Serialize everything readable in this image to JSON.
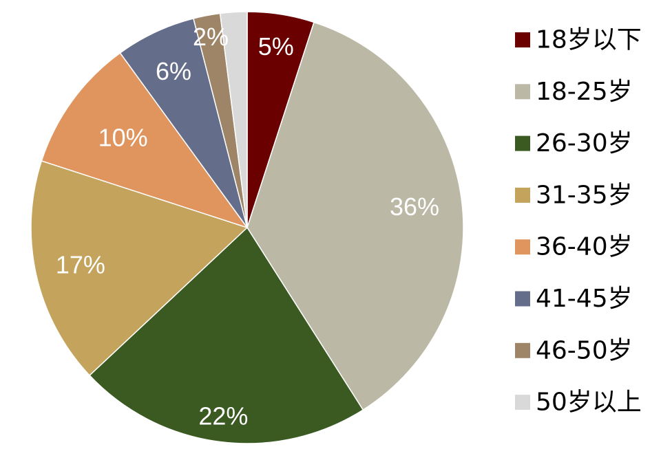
{
  "chart_data": {
    "type": "pie",
    "title": "",
    "legend_position": "right",
    "slices": [
      {
        "label": "18岁以下",
        "value": 5,
        "display": "5%",
        "color": "#6b0000"
      },
      {
        "label": "18-25岁",
        "value": 36,
        "display": "36%",
        "color": "#bbb9a6"
      },
      {
        "label": "26-30岁",
        "value": 22,
        "display": "22%",
        "color": "#3a5a22"
      },
      {
        "label": "31-35岁",
        "value": 17,
        "display": "17%",
        "color": "#c4a35d"
      },
      {
        "label": "36-40岁",
        "value": 10,
        "display": "10%",
        "color": "#e0955f"
      },
      {
        "label": "41-45岁",
        "value": 6,
        "display": "6%",
        "color": "#646d8a"
      },
      {
        "label": "46-50岁",
        "value": 2,
        "display": "2%",
        "color": "#9e8568"
      },
      {
        "label": "50岁以上",
        "value": 2,
        "display": "",
        "color": "#d9d9d9"
      }
    ]
  }
}
